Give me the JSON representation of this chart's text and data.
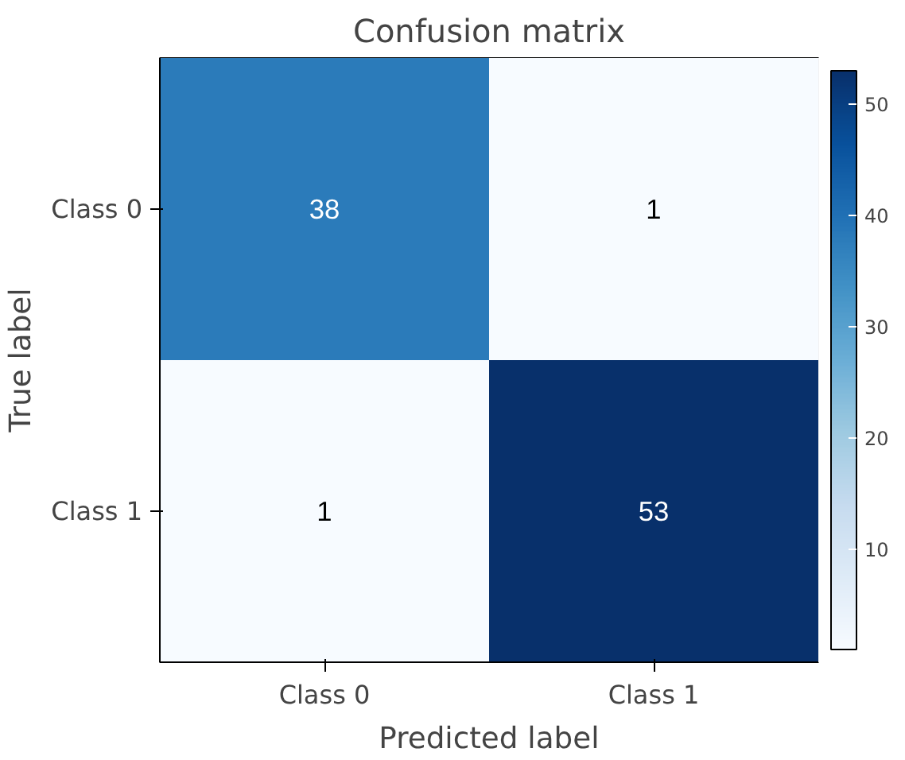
{
  "chart_data": {
    "type": "heatmap",
    "title": "Confusion matrix",
    "xlabel": "Predicted label",
    "ylabel": "True label",
    "categories": [
      "Class 0",
      "Class 1"
    ],
    "y_categories": [
      "Class 0",
      "Class 1"
    ],
    "cells": [
      [
        38,
        1
      ],
      [
        1,
        53
      ]
    ],
    "clim": [
      1,
      53
    ],
    "cticks": [
      10,
      20,
      30,
      40,
      50
    ],
    "data_labels": true
  }
}
